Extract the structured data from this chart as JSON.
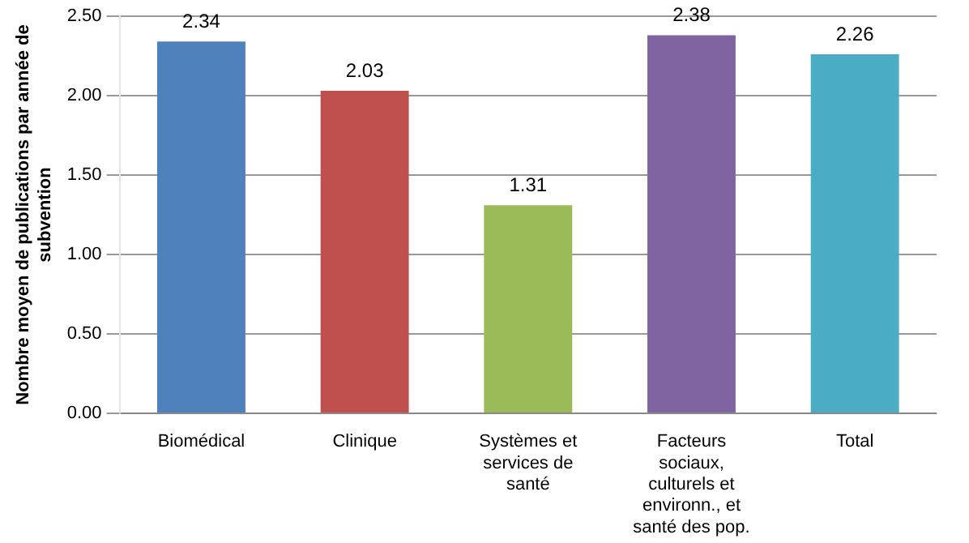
{
  "chart_data": {
    "type": "bar",
    "ylabel": "Nombre moyen de publications par année de subvention",
    "categories": [
      "Biomédical",
      "Clinique",
      "Systèmes et services de santé",
      "Facteurs sociaux, culturels et environn., et santé des pop.",
      "Total"
    ],
    "values": [
      2.34,
      2.03,
      1.31,
      2.38,
      2.26
    ],
    "colors": [
      "#4f81bd",
      "#c0504d",
      "#9bbb59",
      "#8064a2",
      "#4bacc6"
    ],
    "ylim": [
      0,
      2.5
    ],
    "yticks": [
      {
        "value": 0,
        "label": "0.00"
      },
      {
        "value": 0.5,
        "label": "0.50"
      },
      {
        "value": 1,
        "label": "1.00"
      },
      {
        "value": 1.5,
        "label": "1.50"
      },
      {
        "value": 2,
        "label": "2.00"
      },
      {
        "value": 2.5,
        "label": "2.50"
      }
    ],
    "grid": "y",
    "data_labels": true,
    "legend": false
  }
}
